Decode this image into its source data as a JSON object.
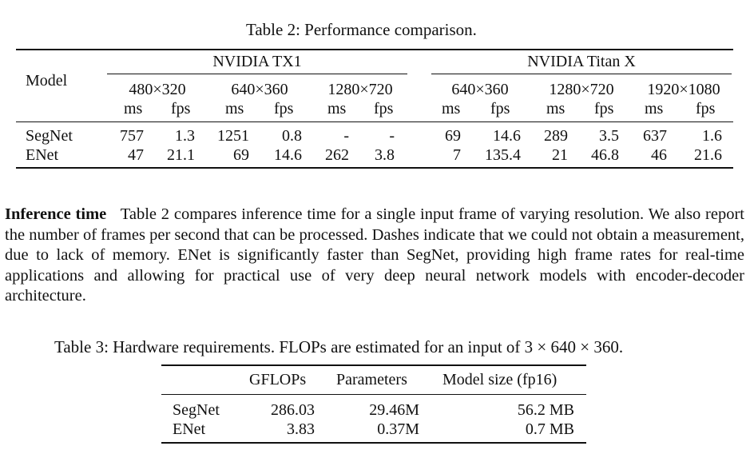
{
  "table2": {
    "caption": "Table 2: Performance comparison.",
    "model_header": "Model",
    "devices": [
      "NVIDIA TX1",
      "NVIDIA Titan X"
    ],
    "tx1_resolutions": [
      "480×320",
      "640×360",
      "1280×720"
    ],
    "titan_resolutions": [
      "640×360",
      "1280×720",
      "1920×1080"
    ],
    "unit_ms": "ms",
    "unit_fps": "fps",
    "rows": [
      {
        "model": "SegNet",
        "tx1": [
          "757",
          "1.3",
          "1251",
          "0.8",
          "-",
          "-"
        ],
        "titan": [
          "69",
          "14.6",
          "289",
          "3.5",
          "637",
          "1.6"
        ]
      },
      {
        "model": "ENet",
        "tx1": [
          "47",
          "21.1",
          "69",
          "14.6",
          "262",
          "3.8"
        ],
        "titan": [
          "7",
          "135.4",
          "21",
          "46.8",
          "46",
          "21.6"
        ]
      }
    ]
  },
  "paragraph": {
    "heading": "Inference time",
    "body": "Table 2 compares inference time for a single input frame of varying resolution. We also report the number of frames per second that can be processed. Dashes indicate that we could not obtain a measurement, due to lack of memory. ENet is significantly faster than SegNet, providing high frame rates for real-time applications and allowing for practical use of very deep neural network models with encoder-decoder architecture."
  },
  "table3": {
    "caption": "Table 3: Hardware requirements. FLOPs are estimated for an input of 3 × 640 × 360.",
    "headers": [
      "GFLOPs",
      "Parameters",
      "Model size (fp16)"
    ],
    "rows": [
      {
        "model": "SegNet",
        "values": [
          "286.03",
          "29.46M",
          "56.2 MB"
        ]
      },
      {
        "model": "ENet",
        "values": [
          "3.83",
          "0.37M",
          "0.7 MB"
        ]
      }
    ]
  }
}
